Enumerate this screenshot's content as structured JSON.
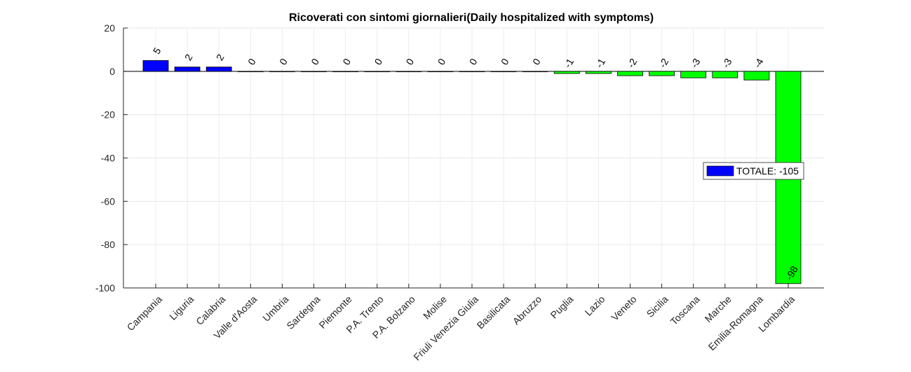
{
  "chart_data": {
    "type": "bar",
    "title": "Ricoverati con sintomi giornalieri(Daily hospitalized with symptoms)",
    "xlabel": "",
    "ylabel": "",
    "ylim": [
      -100,
      20
    ],
    "yticks": [
      20,
      0,
      -20,
      -40,
      -60,
      -80,
      -100
    ],
    "grid": true,
    "legend_position": "right",
    "categories": [
      "Campania",
      "Liguria",
      "Calabria",
      "Valle d'Aosta",
      "Umbria",
      "Sardegna",
      "Piemonte",
      "P.A. Trento",
      "P.A. Bolzano",
      "Molise",
      "Friuli Venezia Giulia",
      "Basilicata",
      "Abruzzo",
      "Puglia",
      "Lazio",
      "Veneto",
      "Sicilia",
      "Toscana",
      "Marche",
      "Emilia-Romagna",
      "Lombardia"
    ],
    "values": [
      5,
      2,
      2,
      0,
      0,
      0,
      0,
      0,
      0,
      0,
      0,
      0,
      0,
      -1,
      -1,
      -2,
      -2,
      -3,
      -3,
      -4,
      -98
    ],
    "colors": {
      "positive": "#0000ff",
      "negative": "#00ff00"
    },
    "legend": [
      {
        "label": "TOTALE: -105",
        "color": "#0000ff"
      }
    ]
  }
}
